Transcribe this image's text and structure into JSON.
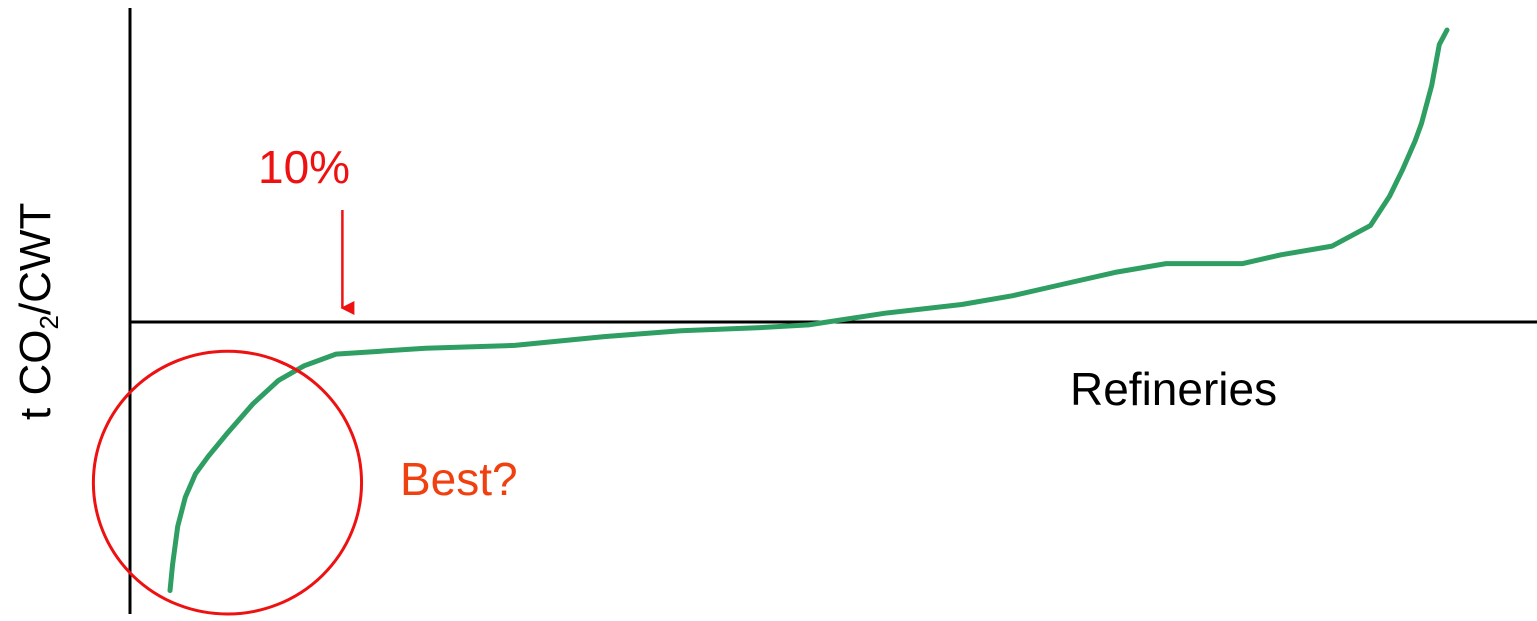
{
  "chart_data": {
    "type": "line",
    "title": "",
    "ylabel_main": "t CO",
    "ylabel_sub": "2",
    "ylabel_tail": "/CWT",
    "xlabel": "Refineries",
    "ylim": [
      -1.0,
      1.0
    ],
    "x_axis_at": 0,
    "grid": false,
    "legend": "none",
    "series": [
      {
        "color": "#2e9e63",
        "points": [
          [
            0.0,
            -0.92
          ],
          [
            0.2,
            -0.83
          ],
          [
            0.6,
            -0.7
          ],
          [
            1.2,
            -0.6
          ],
          [
            2.0,
            -0.52
          ],
          [
            3.0,
            -0.46
          ],
          [
            4.5,
            -0.38
          ],
          [
            6.5,
            -0.28
          ],
          [
            8.5,
            -0.2
          ],
          [
            10.5,
            -0.15
          ],
          [
            13.0,
            -0.11
          ],
          [
            16.5,
            -0.1
          ],
          [
            20.0,
            -0.09
          ],
          [
            27.0,
            -0.08
          ],
          [
            34.0,
            -0.05
          ],
          [
            40.0,
            -0.03
          ],
          [
            46.0,
            -0.02
          ],
          [
            50.0,
            -0.01
          ],
          [
            56.0,
            0.03
          ],
          [
            62.0,
            0.06
          ],
          [
            66.0,
            0.09
          ],
          [
            70.0,
            0.13
          ],
          [
            74.0,
            0.17
          ],
          [
            78.0,
            0.2
          ],
          [
            84.0,
            0.2
          ],
          [
            87.0,
            0.23
          ],
          [
            91.0,
            0.26
          ],
          [
            94.0,
            0.33
          ],
          [
            95.5,
            0.43
          ],
          [
            96.5,
            0.52
          ],
          [
            97.5,
            0.62
          ],
          [
            98.0,
            0.68
          ],
          [
            98.8,
            0.81
          ],
          [
            99.4,
            0.95
          ],
          [
            100.0,
            1.0
          ]
        ]
      }
    ],
    "annotations": {
      "percentile_label": "10%",
      "percentile_x": 13.5,
      "highlight_label": "Best?",
      "highlight_center_x": 4.5,
      "highlight_center_y": -0.55,
      "highlight_rx": 10.5,
      "highlight_ry": 0.45
    },
    "colors": {
      "curve": "#2e9e63",
      "axis": "#000000",
      "annotation": "#ee1111",
      "highlight_label": "#f04010"
    }
  }
}
